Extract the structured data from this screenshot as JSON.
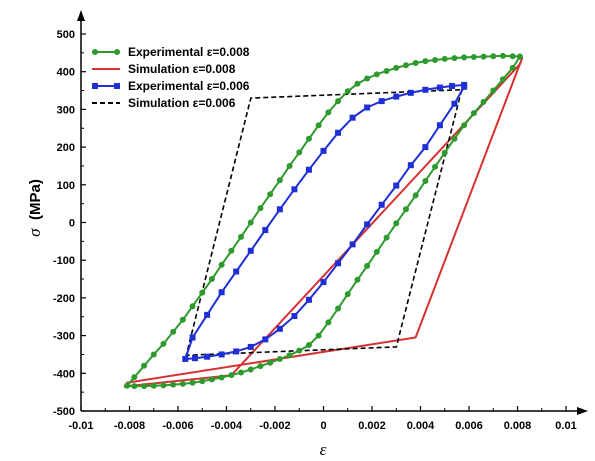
{
  "chart_data": {
    "type": "line",
    "title": "",
    "xlabel": "ε",
    "ylabel_symbol": "σ",
    "ylabel_unit": "(MPa)",
    "xlim": [
      -0.01,
      0.01
    ],
    "ylim": [
      -500,
      500
    ],
    "x_ticks": [
      -0.01,
      -0.008,
      -0.006,
      -0.004,
      -0.002,
      0,
      0.002,
      0.004,
      0.006,
      0.008,
      0.01
    ],
    "x_tick_labels": [
      "-0.01",
      "-0.008",
      "-0.006",
      "-0.004",
      "-0.002",
      "0",
      "0.002",
      "0.004",
      "0.006",
      "0.008",
      "0.01"
    ],
    "y_ticks": [
      -500,
      -400,
      -300,
      -200,
      -100,
      0,
      100,
      200,
      300,
      400,
      500
    ],
    "y_tick_labels": [
      "-500",
      "-400",
      "-300",
      "-200",
      "-100",
      "0",
      "100",
      "200",
      "300",
      "400",
      "500"
    ],
    "grid": false,
    "legend_position": "top-left",
    "series": [
      {
        "name": "Experimental ε=0.008",
        "color": "#2e9a2e",
        "style": "solid",
        "marker": "circle",
        "x": [
          0.0081,
          0.0078,
          0.0074,
          0.007,
          0.0066,
          0.0062,
          0.0058,
          0.0054,
          0.005,
          0.0046,
          0.0042,
          0.0038,
          0.0034,
          0.003,
          0.0026,
          0.0022,
          0.0018,
          0.0014,
          0.001,
          0.0006,
          0.0002,
          -0.0002,
          -0.0006,
          -0.001,
          -0.0014,
          -0.0018,
          -0.0022,
          -0.0026,
          -0.003,
          -0.0034,
          -0.0038,
          -0.0042,
          -0.0046,
          -0.005,
          -0.0054,
          -0.0058,
          -0.0062,
          -0.0066,
          -0.007,
          -0.0074,
          -0.0078,
          -0.0081,
          -0.0078,
          -0.0074,
          -0.007,
          -0.0066,
          -0.0062,
          -0.0058,
          -0.0054,
          -0.005,
          -0.0046,
          -0.0042,
          -0.0038,
          -0.0034,
          -0.003,
          -0.0026,
          -0.0022,
          -0.0018,
          -0.0014,
          -0.001,
          -0.0006,
          -0.0002,
          0.0002,
          0.0006,
          0.001,
          0.0014,
          0.0018,
          0.0022,
          0.0026,
          0.003,
          0.0034,
          0.0038,
          0.0042,
          0.0046,
          0.005,
          0.0054,
          0.0058,
          0.0062,
          0.0066,
          0.007,
          0.0074,
          0.0078,
          0.0081
        ],
        "y": [
          440,
          410,
          380,
          350,
          320,
          290,
          258,
          222,
          185,
          148,
          110,
          72,
          35,
          -2,
          -40,
          -78,
          -115,
          -152,
          -190,
          -228,
          -265,
          -300,
          -325,
          -340,
          -352,
          -362,
          -372,
          -381,
          -390,
          -398,
          -405,
          -411,
          -416,
          -421,
          -425,
          -428,
          -430,
          -432,
          -433,
          -434,
          -434,
          -433,
          -410,
          -380,
          -350,
          -322,
          -290,
          -258,
          -222,
          -186,
          -150,
          -112,
          -75,
          -38,
          0,
          38,
          75,
          112,
          150,
          186,
          222,
          258,
          292,
          322,
          348,
          368,
          382,
          393,
          402,
          410,
          417,
          423,
          428,
          431,
          434,
          436,
          438,
          439,
          440,
          441,
          442,
          441,
          440
        ]
      },
      {
        "name": "Simulation ε=0.008",
        "color": "#d63030",
        "style": "solid",
        "marker": "none",
        "x": [
          0.0082,
          0.0038,
          -0.0081,
          -0.0082,
          -0.0038,
          0.0081,
          0.0082
        ],
        "y": [
          438,
          -305,
          -425,
          -435,
          -405,
          420,
          438
        ]
      },
      {
        "name": "Experimental ε=0.006",
        "color": "#1f2fd6",
        "style": "solid",
        "marker": "square",
        "x": [
          0.0058,
          0.0054,
          0.0048,
          0.0042,
          0.0036,
          0.003,
          0.0024,
          0.0018,
          0.0012,
          0.0006,
          0.0,
          -0.0006,
          -0.0012,
          -0.0018,
          -0.0024,
          -0.003,
          -0.0036,
          -0.0042,
          -0.0048,
          -0.0053,
          -0.0057,
          -0.0054,
          -0.0048,
          -0.0042,
          -0.0036,
          -0.003,
          -0.0024,
          -0.0018,
          -0.0012,
          -0.0006,
          0.0,
          0.0006,
          0.0012,
          0.0018,
          0.0024,
          0.003,
          0.0036,
          0.0042,
          0.0048,
          0.0053,
          0.0058
        ],
        "y": [
          360,
          315,
          258,
          200,
          152,
          98,
          47,
          -5,
          -58,
          -108,
          -158,
          -205,
          -248,
          -282,
          -310,
          -330,
          -342,
          -350,
          -356,
          -360,
          -362,
          -305,
          -245,
          -185,
          -130,
          -75,
          -20,
          35,
          88,
          140,
          190,
          238,
          278,
          305,
          322,
          334,
          344,
          352,
          358,
          362,
          365
        ]
      },
      {
        "name": "Simulation ε=0.006",
        "color": "#000000",
        "style": "dashed",
        "marker": "none",
        "x": [
          0.0057,
          0.003,
          -0.0056,
          -0.0057,
          -0.003,
          0.0056,
          0.0057
        ],
        "y": [
          352,
          -330,
          -352,
          -362,
          330,
          352,
          362
        ]
      }
    ]
  }
}
